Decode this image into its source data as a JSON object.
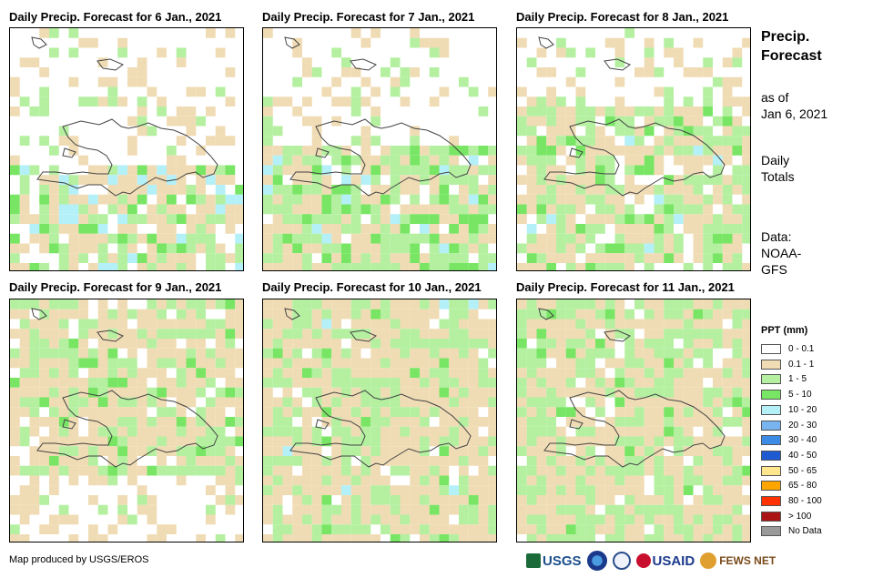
{
  "panels": [
    {
      "title": "Daily Precip. Forecast for 6 Jan., 2021"
    },
    {
      "title": "Daily Precip. Forecast for 7 Jan., 2021"
    },
    {
      "title": "Daily Precip. Forecast for 8 Jan., 2021"
    },
    {
      "title": "Daily Precip. Forecast for 9 Jan., 2021"
    },
    {
      "title": "Daily Precip. Forecast for 10 Jan., 2021"
    },
    {
      "title": "Daily Precip. Forecast for 11 Jan., 2021"
    }
  ],
  "sidebar": {
    "title_line1": "Precip.",
    "title_line2": "Forecast",
    "asof_line1": "as of",
    "asof_line2": "Jan 6, 2021",
    "daily_line1": "Daily",
    "daily_line2": "Totals",
    "data_line1": "Data:",
    "data_line2": "NOAA-",
    "data_line3": "GFS"
  },
  "legend": {
    "title": "PPT (mm)",
    "items": [
      {
        "label": "0 - 0.1",
        "color": "#ffffff"
      },
      {
        "label": "0.1 - 1",
        "color": "#f0dcb4"
      },
      {
        "label": "1 - 5",
        "color": "#b4f0a0"
      },
      {
        "label": "5 - 10",
        "color": "#78e664"
      },
      {
        "label": "10 - 20",
        "color": "#b4f0f8"
      },
      {
        "label": "20 - 30",
        "color": "#78b4f0"
      },
      {
        "label": "30 - 40",
        "color": "#3c8ce6"
      },
      {
        "label": "40 - 50",
        "color": "#1e5ad2"
      },
      {
        "label": "50 - 65",
        "color": "#ffe68c"
      },
      {
        "label": "65 - 80",
        "color": "#ffa500"
      },
      {
        "label": "80 - 100",
        "color": "#ff3200"
      },
      {
        "label": "> 100",
        "color": "#aa1414"
      },
      {
        "label": "No Data",
        "color": "#999999"
      }
    ]
  },
  "credit": "Map produced by USGS/EROS",
  "logos": {
    "usgs": "USGS",
    "usaid": "USAID",
    "fews": "FEWS NET"
  }
}
